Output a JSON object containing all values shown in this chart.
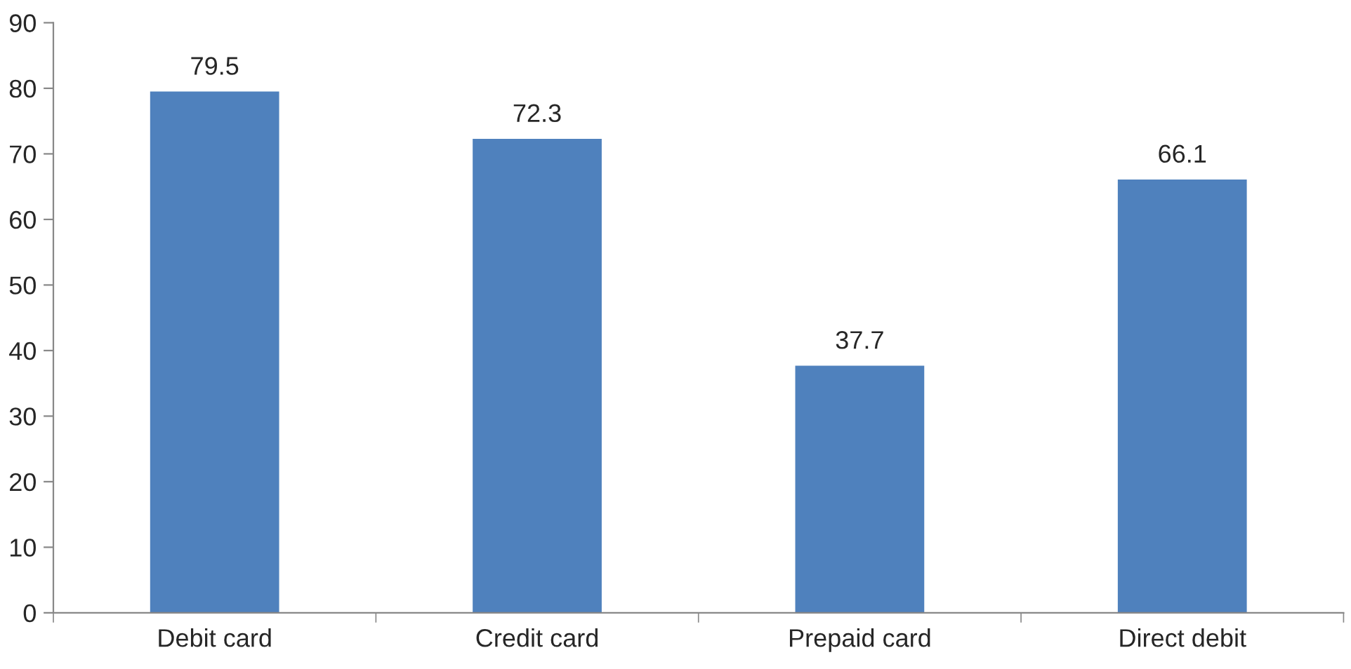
{
  "chart_data": {
    "type": "bar",
    "categories": [
      "Debit card",
      "Credit card",
      "Prepaid card",
      "Direct debit"
    ],
    "values": [
      79.5,
      72.3,
      37.7,
      66.1
    ],
    "color": "#4f81bd",
    "ylim": [
      0,
      90
    ],
    "yticks": [
      0,
      10,
      20,
      30,
      40,
      50,
      60,
      70,
      80,
      90
    ],
    "data_labels": true,
    "grid": false,
    "legend": false
  }
}
